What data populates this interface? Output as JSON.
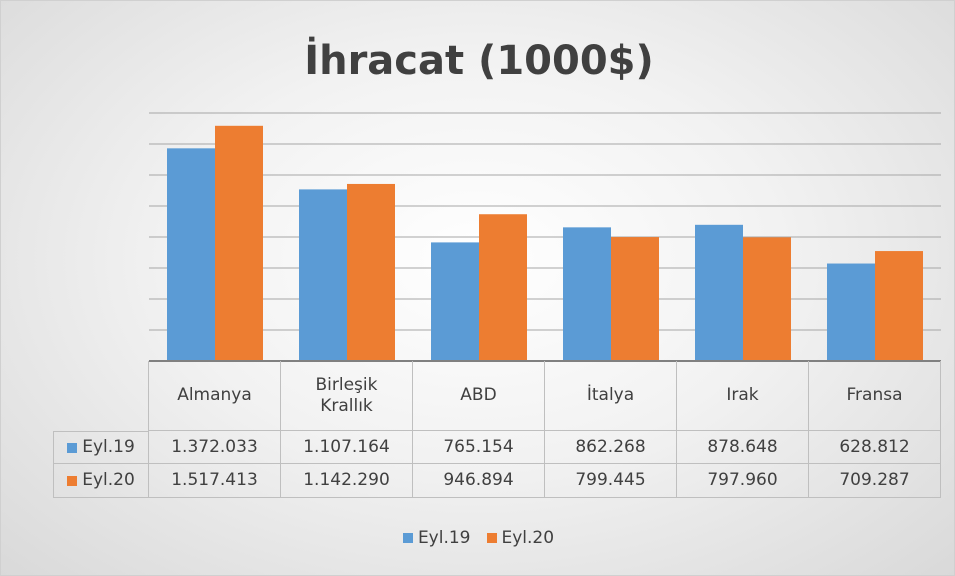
{
  "chart_data": {
    "type": "bar",
    "title": "İhracat (1000$)",
    "categories": [
      "Almanya",
      "Birleşik Krallık",
      "ABD",
      "İtalya",
      "Irak",
      "Fransa"
    ],
    "series": [
      {
        "name": "Eyl.19",
        "color": "#5b9bd5",
        "values": [
          1372033,
          1107164,
          765154,
          862268,
          878648,
          628812
        ],
        "value_labels": [
          "1.372.033",
          "1.107.164",
          "765.154",
          "862.268",
          "878.648",
          "628.812"
        ]
      },
      {
        "name": "Eyl.20",
        "color": "#ed7d31",
        "values": [
          1517413,
          1142290,
          946894,
          799445,
          797960,
          709287
        ],
        "value_labels": [
          "1.517.413",
          "1.142.290",
          "946.894",
          "799.445",
          "797.960",
          "709.287"
        ]
      }
    ],
    "ylim": [
      0,
      1600000
    ],
    "yticks": [
      0,
      200000,
      400000,
      600000,
      800000,
      1000000,
      1200000,
      1400000,
      1600000
    ],
    "grid": true
  }
}
